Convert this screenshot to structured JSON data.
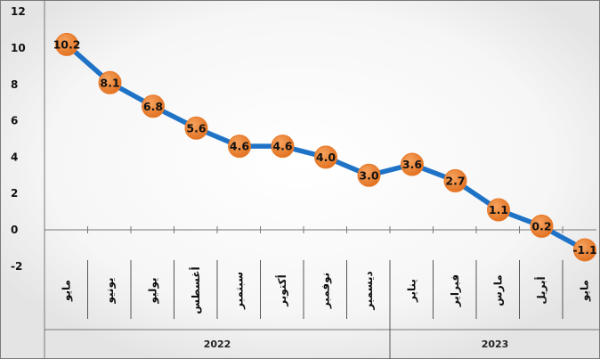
{
  "chart_data": {
    "type": "line",
    "categories": [
      "مايو",
      "يونيو",
      "يوليو",
      "أغسطس",
      "سبتمبر",
      "أكتوبر",
      "نوفمبر",
      "ديسمبر",
      "يناير",
      "فبراير",
      "مارس",
      "أبريل",
      "مايو"
    ],
    "groups": [
      {
        "label": "2022",
        "span": 8
      },
      {
        "label": "2023",
        "span": 5
      }
    ],
    "series": [
      {
        "values": [
          10.2,
          8.1,
          6.8,
          5.6,
          4.6,
          4.6,
          4.0,
          3.0,
          3.6,
          2.7,
          1.1,
          0.2,
          -1.1
        ]
      }
    ],
    "data_labels": [
      "10.2",
      "8.1",
      "6.8",
      "5.6",
      "4.6",
      "4.6",
      "4.0",
      "3.0",
      "3.6",
      "2.7",
      "1.1",
      "0.2",
      "-1.1"
    ],
    "yticks": [
      "-2",
      "0",
      "2",
      "4",
      "6",
      "8",
      "10",
      "12"
    ],
    "ylim": [
      -2,
      12
    ],
    "grid": false,
    "colors": {
      "line": "#1f73c7",
      "marker": "#ee7d32",
      "background_glow": "#e9e9e9",
      "frame": "#777777"
    }
  }
}
